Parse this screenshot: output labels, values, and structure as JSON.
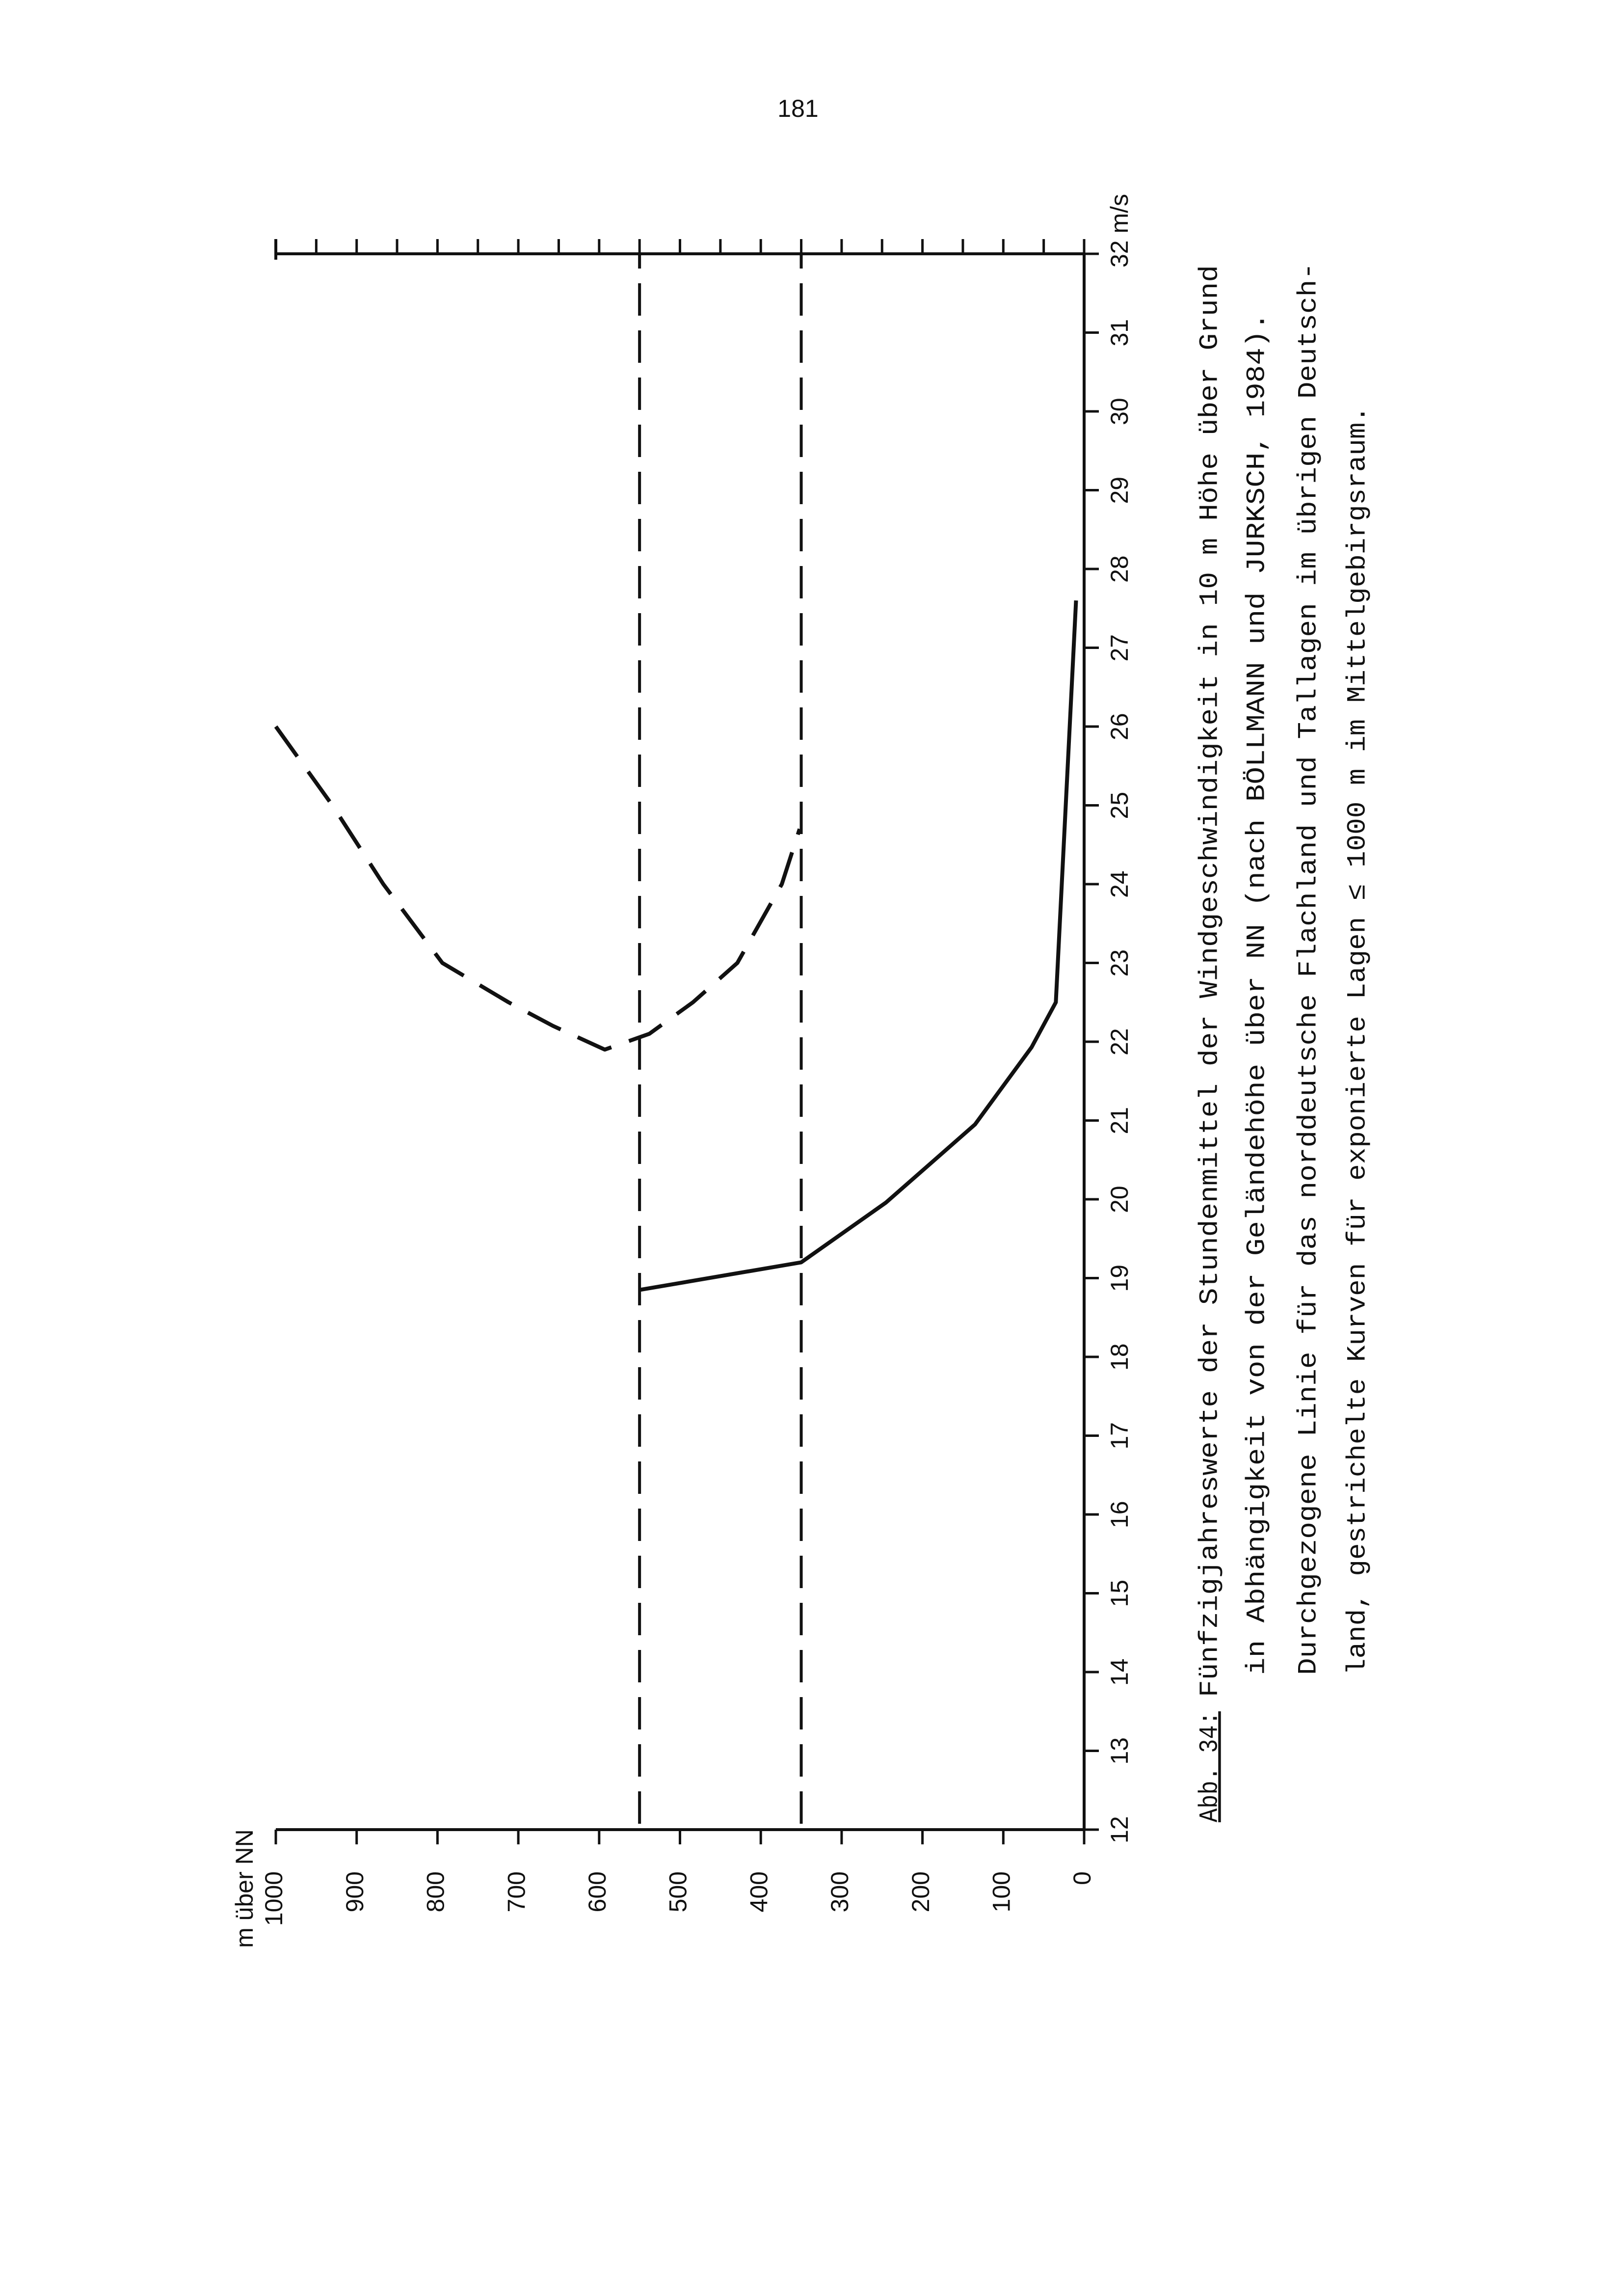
{
  "page_number": "181",
  "chart_data": {
    "type": "line",
    "y_label": "m über NN",
    "xlim": [
      12,
      32
    ],
    "xticks": [
      12,
      13,
      14,
      15,
      16,
      17,
      18,
      19,
      20,
      21,
      22,
      23,
      24,
      25,
      26,
      27,
      28,
      29,
      30,
      31,
      {
        "value": 32,
        "label": "32 m/s"
      }
    ],
    "ylim": [
      0,
      1000
    ],
    "yticks": [
      0,
      100,
      200,
      300,
      400,
      500,
      600,
      700,
      800,
      900,
      1000
    ],
    "color": "#111111",
    "series": [
      {
        "style": "solid",
        "x": [
          18.85,
          19.2,
          19.96,
          20.95,
          21.93,
          22.5,
          27.6
        ],
        "values": [
          550,
          350,
          245,
          135,
          65,
          35,
          10
        ]
      },
      {
        "style": "dashed",
        "x": [
          26,
          25,
          24,
          23,
          22.5,
          22.2,
          21.9,
          22.1,
          22.5,
          23,
          24,
          24.7
        ],
        "values": [
          1000,
          930,
          867,
          794,
          712,
          657,
          593,
          538,
          484,
          429,
          374,
          352
        ]
      }
    ],
    "reference_lines": [
      550,
      350
    ]
  },
  "caption": {
    "label": "Abb. 34:",
    "lines": [
      "Fünfzigjahreswerte der Stundenmittel der Windgeschwindigkeit in 10 m Höhe über Grund",
      "in Abhängigkeit von der Geländehöhe über NN (nach BÖLLMANN und JURKSCH, 1984).",
      "Durchgezogene Linie für das norddeutsche Flachland und Tallagen im übrigen Deutsch-",
      "land, gestrichelte Kurven für exponierte Lagen ≤ 1000 m im Mittelgebirgsraum."
    ]
  }
}
